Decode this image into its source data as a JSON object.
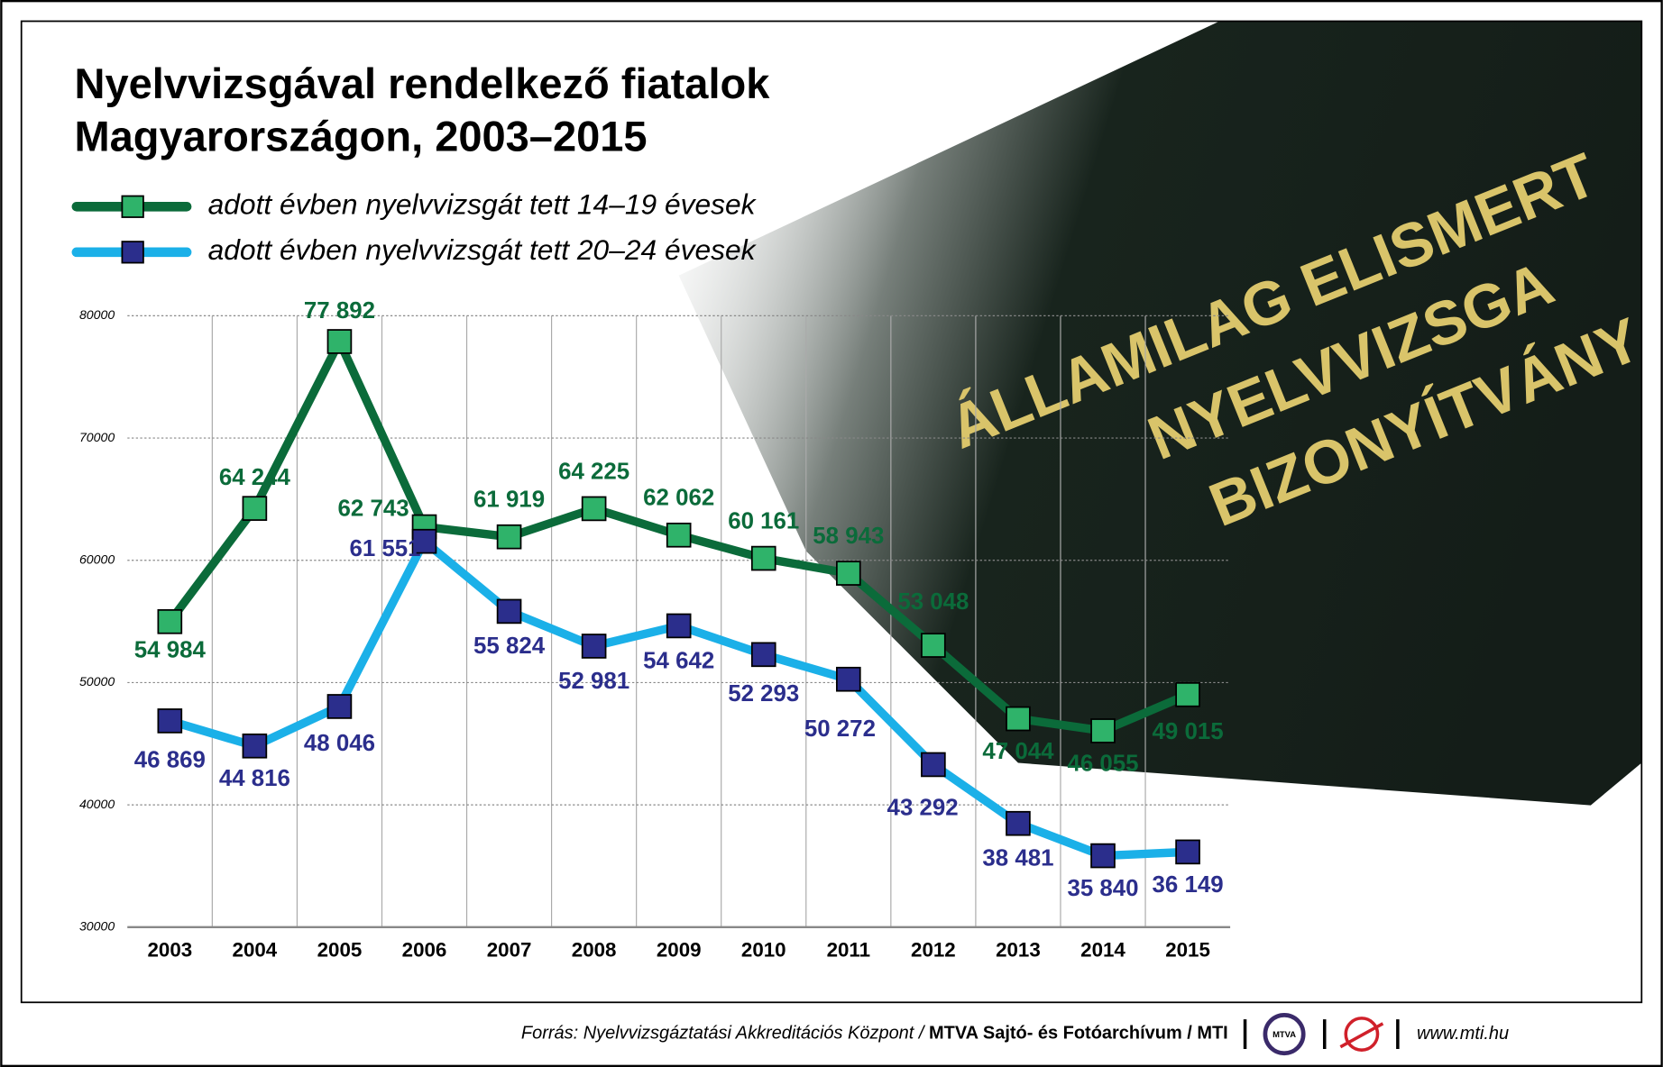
{
  "chart_data": {
    "type": "line",
    "title": [
      "Nyelvvizsgával rendelkező fiatalok",
      "Magyarországon, 2003–2015"
    ],
    "categories": [
      "2003",
      "2004",
      "2005",
      "2006",
      "2007",
      "2008",
      "2009",
      "2010",
      "2011",
      "2012",
      "2013",
      "2014",
      "2015"
    ],
    "series": [
      {
        "name": "adott évben nyelvvizsgát tett 14–19 évesek",
        "color": "#0b6b3a",
        "marker_color": "#2fb36a",
        "label_color": "#0b6b3a",
        "values": [
          54984,
          64244,
          77892,
          62743,
          61919,
          64225,
          62062,
          60161,
          58943,
          53048,
          47044,
          46055,
          49015
        ],
        "value_labels": [
          "54 984",
          "64 244",
          "77 892",
          "62 743",
          "61 919",
          "64 225",
          "62 062",
          "60 161",
          "58 943",
          "53 048",
          "47 044",
          "46 055",
          "49 015"
        ]
      },
      {
        "name": "adott évben nyelvvizsgát tett 20–24 évesek",
        "color": "#1bb0e8",
        "marker_color": "#2b2e8c",
        "label_color": "#2b2e8c",
        "values": [
          46869,
          44816,
          48046,
          61551,
          55824,
          52981,
          54642,
          52293,
          50272,
          43292,
          38481,
          35840,
          36149
        ],
        "value_labels": [
          "46 869",
          "44 816",
          "48 046",
          "61 551",
          "55 824",
          "52 981",
          "54 642",
          "52 293",
          "50 272",
          "43 292",
          "38 481",
          "35 840",
          "36 149"
        ]
      }
    ],
    "ylim": [
      30000,
      80000
    ],
    "yticks": [
      30000,
      40000,
      50000,
      60000,
      70000,
      80000
    ],
    "grid": true,
    "background_text": [
      "ÁLLAMILAG ELISMERT",
      "NYELVVIZSGA",
      "BIZONYÍTVÁNY"
    ],
    "source": "Forrás: Nyelvvizsgáztatási Akkreditációs Központ /",
    "source_bold": "MTVA Sajtó- és Fotóarchívum / MTI",
    "logo": "MTVA",
    "website": "www.mti.hu"
  }
}
